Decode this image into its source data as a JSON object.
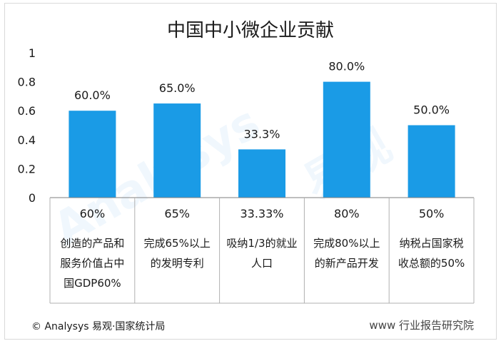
{
  "chart_data": {
    "type": "bar",
    "title": "中国中小微企业贡献",
    "categories": [
      "创造的产品和服务价值占中国GDP60%",
      "完成65%以上的发明专利",
      "吸纳1/3的就业人口",
      "完成80%以上的新产品开发",
      "纳税占国家税收总额的50%"
    ],
    "values": [
      0.6,
      0.65,
      0.333,
      0.8,
      0.5
    ],
    "data_labels": [
      "60.0%",
      "65.0%",
      "33.3%",
      "80.0%",
      "50.0%"
    ],
    "ylim": [
      0,
      1
    ],
    "yticks": [
      "0",
      "0.2",
      "0.4",
      "0.6",
      "0.8",
      "1"
    ],
    "xlabel": "",
    "ylabel": "",
    "grid": false,
    "bar_color": "#1a9be6",
    "table": {
      "value_row": [
        "60%",
        "65%",
        "33.33%",
        "80%",
        "50%"
      ],
      "desc_row": [
        [
          "创造的产品和",
          "服务价值占中",
          "国GDP60%"
        ],
        [
          "完成65%以上",
          "的发明专利"
        ],
        [
          "吸纳1/3的就业",
          "人口"
        ],
        [
          "完成80%以上",
          "的新产品开发"
        ],
        [
          "纳税占国家税",
          "收总额的50%"
        ]
      ]
    }
  },
  "footer": {
    "source": "© Analysys 易观·国家统计局",
    "watermark_right": "www 行业报告研究院"
  }
}
